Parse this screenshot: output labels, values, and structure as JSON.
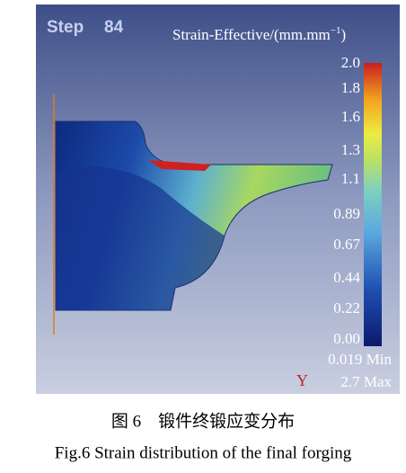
{
  "figure": {
    "step_label": "Step",
    "step_number": "84",
    "colorbar": {
      "title_main": "Strain-Effective/(mm.mm",
      "title_sup": "−1",
      "title_end": ")",
      "ticks": [
        "2.0",
        "1.8",
        "1.6",
        "1.3",
        "1.1",
        "0.89",
        "0.67",
        "0.44",
        "0.22",
        "0.00"
      ],
      "min_label": "0.019 Min",
      "axis_label": "Y",
      "max_label": "2.7 Max"
    },
    "caption_cn": "图 6　锻件终锻应变分布",
    "caption_en": "Fig.6 Strain distribution of the final forging"
  }
}
